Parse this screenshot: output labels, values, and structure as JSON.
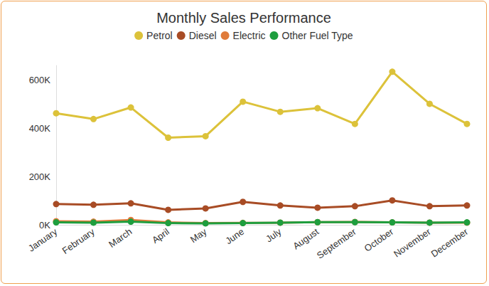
{
  "chart_data": {
    "type": "line",
    "title": "Monthly Sales Performance",
    "categories": [
      "January",
      "February",
      "March",
      "April",
      "May",
      "June",
      "July",
      "August",
      "September",
      "October",
      "November",
      "December"
    ],
    "series": [
      {
        "name": "Petrol",
        "color": "#dcc23a",
        "values": [
          462000,
          438000,
          486000,
          361000,
          367000,
          510000,
          468000,
          483000,
          418000,
          634000,
          501000,
          418000
        ]
      },
      {
        "name": "Diesel",
        "color": "#a84c25",
        "values": [
          86000,
          83000,
          89000,
          62000,
          68000,
          95000,
          80000,
          71000,
          77000,
          101000,
          77000,
          80000
        ]
      },
      {
        "name": "Electric",
        "color": "#e07b3a",
        "values": [
          15000,
          13000,
          20000,
          10000,
          7000,
          8000,
          9000,
          11000,
          12000,
          10000,
          9000,
          9000
        ]
      },
      {
        "name": "Other Fuel Type",
        "color": "#1e9e3e",
        "values": [
          10000,
          9000,
          13000,
          7000,
          6000,
          7000,
          9000,
          11000,
          11000,
          10000,
          9000,
          10000
        ]
      }
    ],
    "ylim": [
      0,
      660000
    ],
    "yticks": [
      {
        "value": 0,
        "label": "0K"
      },
      {
        "value": 200000,
        "label": "200K"
      },
      {
        "value": 400000,
        "label": "400K"
      },
      {
        "value": 600000,
        "label": "600K"
      }
    ],
    "grid": false,
    "legend": "top",
    "marker": "circle"
  }
}
